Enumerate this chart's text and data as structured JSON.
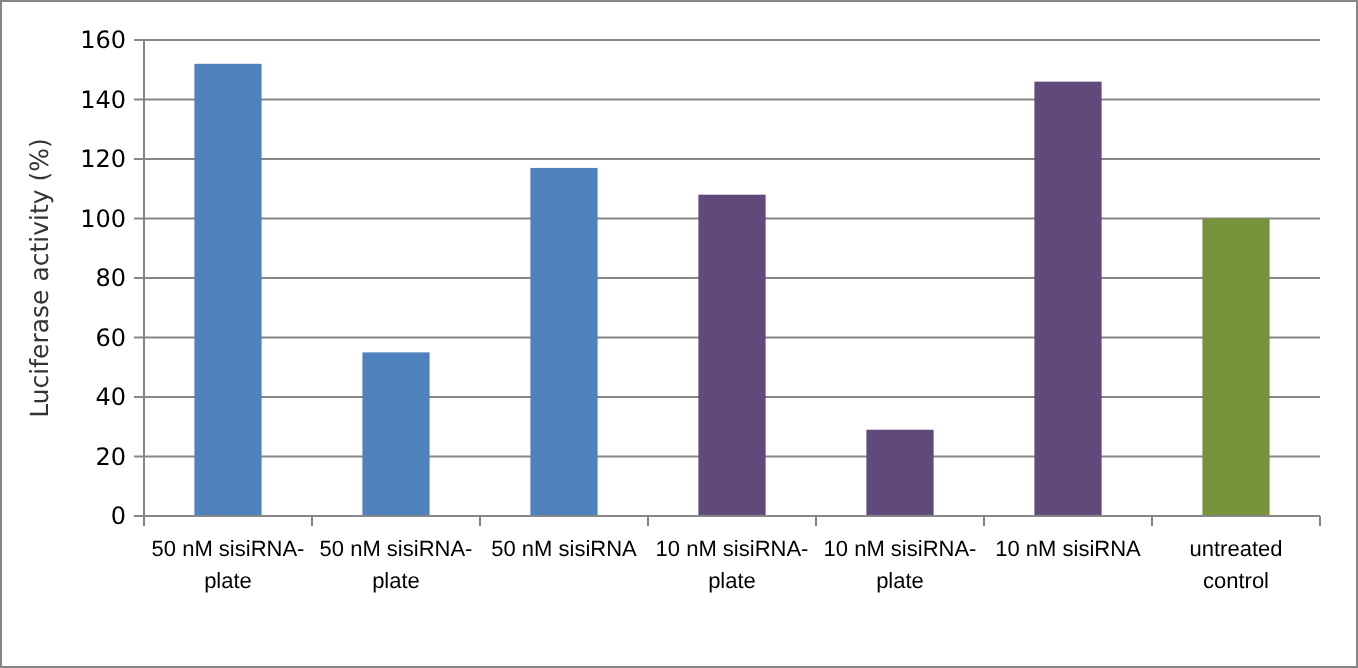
{
  "chart_data": {
    "type": "bar",
    "ylabel": "Luciferase activity (%)",
    "categories": [
      "50 nM sisiRNA- plate",
      "50 nM sisiRNA- plate",
      "50 nM sisiRNA",
      "10 nM sisiRNA- plate",
      "10 nM sisiRNA- plate",
      "10 nM sisiRNA",
      "untreated control"
    ],
    "values": [
      152,
      55,
      117,
      108,
      29,
      146,
      100
    ],
    "colors": [
      "#4f81bd",
      "#4f81bd",
      "#4f81bd",
      "#604a7b",
      "#604a7b",
      "#604a7b",
      "#77933c"
    ],
    "ylim": [
      0,
      160
    ],
    "yticks": [
      0,
      20,
      40,
      60,
      80,
      100,
      120,
      140,
      160
    ],
    "grid": "y"
  }
}
